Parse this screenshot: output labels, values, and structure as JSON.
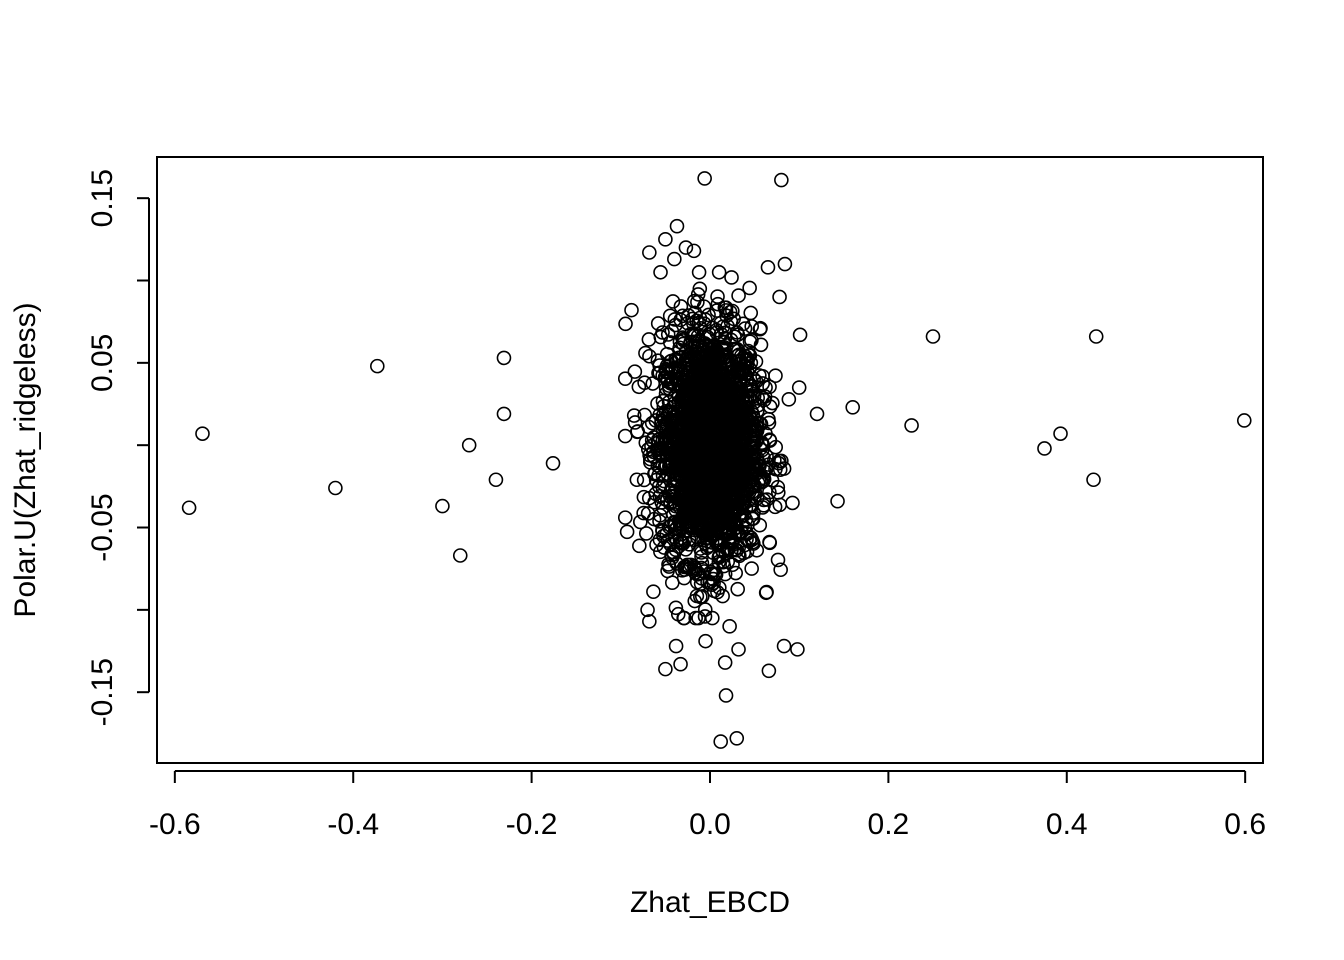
{
  "chart_data": {
    "type": "scatter",
    "title": "",
    "xlabel": "Zhat_EBCD",
    "ylabel": "Polar.U(Zhat_ridgeless)",
    "xlim": [
      -0.62,
      0.62
    ],
    "ylim": [
      -0.193,
      0.175
    ],
    "x_ticks": [
      -0.6,
      -0.4,
      -0.2,
      0.0,
      0.2,
      0.4,
      0.6
    ],
    "x_tick_labels": [
      "-0.6",
      "-0.4",
      "-0.2",
      "0.0",
      "0.2",
      "0.4",
      "0.6"
    ],
    "y_ticks": [
      -0.15,
      -0.1,
      -0.05,
      0.0,
      0.05,
      0.1,
      0.15
    ],
    "y_tick_labels": [
      "-0.15",
      "",
      "-0.05",
      "",
      "0.05",
      "",
      "0.15"
    ],
    "marker": "open-circle",
    "marker_color": "#000000",
    "grid": false,
    "legend": "none",
    "core_cluster": {
      "x_center": 0.0,
      "x_sd": 0.028,
      "y_center": 0.0,
      "y_sd": 0.035,
      "approx_point_count": 2500,
      "note_visible": false
    },
    "points": [
      {
        "x": -0.584,
        "y": -0.038
      },
      {
        "x": -0.569,
        "y": 0.007
      },
      {
        "x": -0.42,
        "y": -0.026
      },
      {
        "x": -0.373,
        "y": 0.048
      },
      {
        "x": -0.3,
        "y": -0.037
      },
      {
        "x": -0.28,
        "y": -0.067
      },
      {
        "x": -0.27,
        "y": 0.0
      },
      {
        "x": -0.24,
        "y": -0.021
      },
      {
        "x": -0.231,
        "y": 0.053
      },
      {
        "x": -0.231,
        "y": 0.019
      },
      {
        "x": -0.176,
        "y": -0.011
      },
      {
        "x": -0.095,
        "y": -0.044
      },
      {
        "x": -0.088,
        "y": 0.082
      },
      {
        "x": -0.085,
        "y": 0.018
      },
      {
        "x": -0.082,
        "y": -0.021
      },
      {
        "x": -0.07,
        "y": -0.1
      },
      {
        "x": -0.068,
        "y": -0.107
      },
      {
        "x": -0.068,
        "y": 0.117
      },
      {
        "x": -0.05,
        "y": 0.125
      },
      {
        "x": -0.05,
        "y": -0.136
      },
      {
        "x": -0.04,
        "y": 0.113
      },
      {
        "x": -0.038,
        "y": -0.122
      },
      {
        "x": -0.037,
        "y": 0.133
      },
      {
        "x": -0.033,
        "y": -0.133
      },
      {
        "x": -0.027,
        "y": 0.12
      },
      {
        "x": -0.018,
        "y": 0.118
      },
      {
        "x": -0.006,
        "y": 0.162
      },
      {
        "x": -0.005,
        "y": -0.119
      },
      {
        "x": 0.012,
        "y": -0.18
      },
      {
        "x": 0.017,
        "y": -0.132
      },
      {
        "x": 0.018,
        "y": -0.152
      },
      {
        "x": 0.022,
        "y": -0.11
      },
      {
        "x": 0.03,
        "y": -0.178
      },
      {
        "x": 0.032,
        "y": -0.124
      },
      {
        "x": 0.065,
        "y": 0.108
      },
      {
        "x": 0.066,
        "y": -0.137
      },
      {
        "x": 0.078,
        "y": 0.09
      },
      {
        "x": 0.08,
        "y": 0.161
      },
      {
        "x": 0.083,
        "y": -0.122
      },
      {
        "x": 0.084,
        "y": 0.11
      },
      {
        "x": 0.098,
        "y": -0.124
      },
      {
        "x": 0.1,
        "y": 0.035
      },
      {
        "x": 0.101,
        "y": 0.067
      },
      {
        "x": 0.12,
        "y": 0.019
      },
      {
        "x": 0.143,
        "y": -0.034
      },
      {
        "x": 0.16,
        "y": 0.023
      },
      {
        "x": 0.226,
        "y": 0.012
      },
      {
        "x": 0.25,
        "y": 0.066
      },
      {
        "x": 0.375,
        "y": -0.002
      },
      {
        "x": 0.393,
        "y": 0.007
      },
      {
        "x": 0.43,
        "y": -0.021
      },
      {
        "x": 0.433,
        "y": 0.066
      },
      {
        "x": 0.599,
        "y": 0.015
      }
    ]
  }
}
